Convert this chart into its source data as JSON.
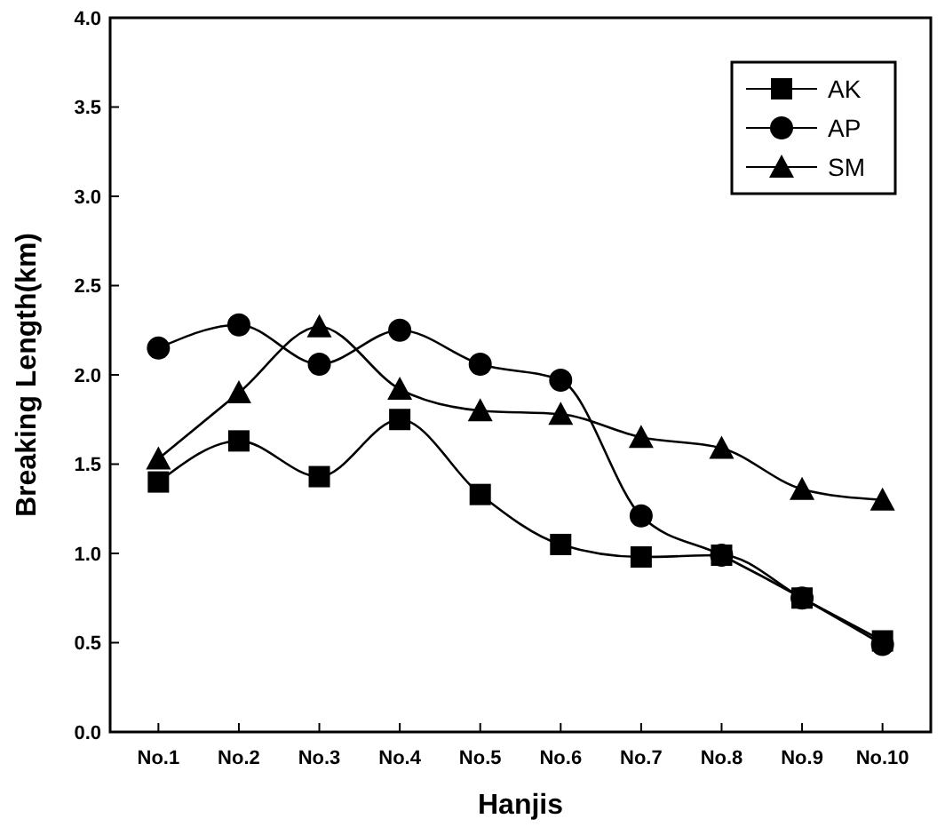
{
  "chart_data": {
    "type": "line",
    "xlabel": "Hanjis",
    "ylabel": "Breaking Length(km)",
    "categories": [
      "No.1",
      "No.2",
      "No.3",
      "No.4",
      "No.5",
      "No.6",
      "No.7",
      "No.8",
      "No.9",
      "No.10"
    ],
    "series": [
      {
        "name": "AK",
        "color": "#000000",
        "marker": "square",
        "values": [
          1.4,
          1.63,
          1.43,
          1.75,
          1.33,
          1.05,
          0.98,
          0.99,
          0.75,
          0.51
        ]
      },
      {
        "name": "AP",
        "color": "#000000",
        "marker": "circle",
        "values": [
          2.15,
          2.28,
          2.06,
          2.25,
          2.06,
          1.97,
          1.21,
          0.99,
          0.75,
          0.49
        ]
      },
      {
        "name": "SM",
        "color": "#000000",
        "marker": "triangle",
        "values": [
          1.53,
          1.9,
          2.27,
          1.92,
          1.8,
          1.78,
          1.65,
          1.59,
          1.36,
          1.3
        ]
      }
    ],
    "ylim": [
      0,
      4
    ],
    "yticks": [
      {
        "value": 0,
        "label": "0.0"
      },
      {
        "value": 0.5,
        "label": "0.5"
      },
      {
        "value": 1,
        "label": "1.0"
      },
      {
        "value": 1.5,
        "label": "1.5"
      },
      {
        "value": 2,
        "label": "2.0"
      },
      {
        "value": 2.5,
        "label": "2.5"
      },
      {
        "value": 3,
        "label": "3.0"
      },
      {
        "value": 3.5,
        "label": "3.5"
      },
      {
        "value": 4,
        "label": "4.0"
      }
    ],
    "legend": "top right",
    "grid": false,
    "line_style": "solid"
  }
}
